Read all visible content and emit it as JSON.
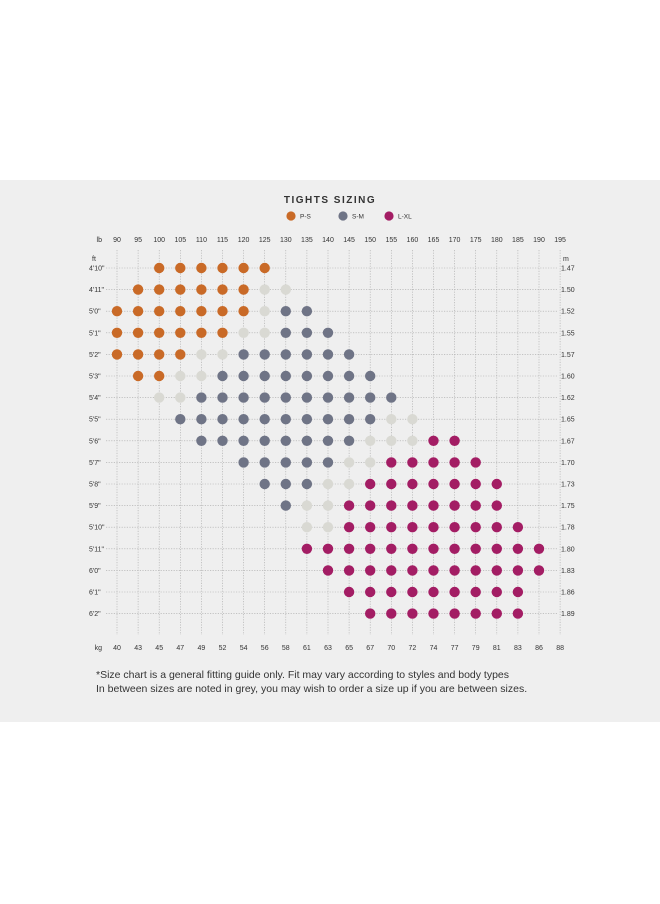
{
  "colors": {
    "ps": "#c96a27",
    "sm": "#6f7486",
    "lxl": "#a31d64",
    "between": "#d9d9d3",
    "grid": "#a8a8a8",
    "text": "#333333"
  },
  "chart_data": {
    "type": "scatter",
    "title": "TIGHTS SIZING",
    "legend": [
      {
        "key": "ps",
        "label": "P-S"
      },
      {
        "key": "sm",
        "label": "S-M"
      },
      {
        "key": "lxl",
        "label": "L-XL"
      }
    ],
    "x_top_unit": "lb",
    "x_top": [
      "90",
      "95",
      "100",
      "105",
      "110",
      "115",
      "120",
      "125",
      "130",
      "135",
      "140",
      "145",
      "150",
      "155",
      "160",
      "165",
      "170",
      "175",
      "180",
      "185",
      "190",
      "195"
    ],
    "x_bottom_unit": "kg",
    "x_bottom": [
      "40",
      "43",
      "45",
      "47",
      "49",
      "52",
      "54",
      "56",
      "58",
      "61",
      "63",
      "65",
      "67",
      "70",
      "72",
      "74",
      "77",
      "79",
      "81",
      "83",
      "86",
      "88"
    ],
    "y_left_unit": "ft",
    "y_left": [
      "4'10\"",
      "4'11\"",
      "5'0\"",
      "5'1\"",
      "5'2\"",
      "5'3\"",
      "5'4\"",
      "5'5\"",
      "5'6\"",
      "5'7\"",
      "5'8\"",
      "5'9\"",
      "5'10\"",
      "5'11\"",
      "6'0\"",
      "6'1\"",
      "6'2\""
    ],
    "y_right_unit": "m",
    "y_right": [
      "1.47",
      "1.50",
      "1.52",
      "1.55",
      "1.57",
      "1.60",
      "1.62",
      "1.65",
      "1.67",
      "1.70",
      "1.73",
      "1.75",
      "1.78",
      "1.80",
      "1.83",
      "1.86",
      "1.89"
    ],
    "rows": [
      {
        "height": "4'10\"",
        "ps": [
          "100",
          "125"
        ],
        "between": [],
        "sm": [],
        "lxl": []
      },
      {
        "height": "4'11\"",
        "ps": [
          "95",
          "120"
        ],
        "between": [
          [
            "125",
            "130"
          ]
        ],
        "sm": [],
        "lxl": []
      },
      {
        "height": "5'0\"",
        "ps": [
          "90",
          "120"
        ],
        "between": [
          [
            "125",
            "125"
          ]
        ],
        "sm": [
          "130",
          "135"
        ],
        "lxl": []
      },
      {
        "height": "5'1\"",
        "ps": [
          "90",
          "115"
        ],
        "between": [
          [
            "120",
            "125"
          ]
        ],
        "sm": [
          "130",
          "140"
        ],
        "lxl": []
      },
      {
        "height": "5'2\"",
        "ps": [
          "90",
          "105"
        ],
        "between": [
          [
            "110",
            "115"
          ]
        ],
        "sm": [
          "120",
          "145"
        ],
        "lxl": []
      },
      {
        "height": "5'3\"",
        "ps": [
          "95",
          "100"
        ],
        "between": [
          [
            "105",
            "110"
          ]
        ],
        "sm": [
          "115",
          "150"
        ],
        "lxl": []
      },
      {
        "height": "5'4\"",
        "ps": [],
        "between": [
          [
            "100",
            "105"
          ]
        ],
        "sm": [
          "110",
          "155"
        ],
        "lxl": []
      },
      {
        "height": "5'5\"",
        "ps": [],
        "between": [
          [
            "155",
            "160"
          ]
        ],
        "sm": [
          "105",
          "150"
        ],
        "lxl": []
      },
      {
        "height": "5'6\"",
        "ps": [],
        "between": [
          [
            "150",
            "160"
          ]
        ],
        "sm": [
          "110",
          "145"
        ],
        "lxl": [
          "165",
          "170"
        ]
      },
      {
        "height": "5'7\"",
        "ps": [],
        "between": [
          [
            "145",
            "150"
          ]
        ],
        "sm": [
          "120",
          "140"
        ],
        "lxl": [
          "155",
          "175"
        ]
      },
      {
        "height": "5'8\"",
        "ps": [],
        "between": [
          [
            "140",
            "145"
          ]
        ],
        "sm": [
          "125",
          "135"
        ],
        "lxl": [
          "150",
          "180"
        ]
      },
      {
        "height": "5'9\"",
        "ps": [],
        "between": [
          [
            "135",
            "140"
          ]
        ],
        "sm": [
          "130",
          "130"
        ],
        "lxl": [
          "145",
          "180"
        ]
      },
      {
        "height": "5'10\"",
        "ps": [],
        "between": [
          [
            "135",
            "140"
          ]
        ],
        "sm": [],
        "lxl": [
          "145",
          "185"
        ]
      },
      {
        "height": "5'11\"",
        "ps": [],
        "between": [],
        "sm": [],
        "lxl": [
          "135",
          "190"
        ]
      },
      {
        "height": "6'0\"",
        "ps": [],
        "between": [],
        "sm": [],
        "lxl": [
          "140",
          "190"
        ]
      },
      {
        "height": "6'1\"",
        "ps": [],
        "between": [],
        "sm": [],
        "lxl": [
          "145",
          "185"
        ]
      },
      {
        "height": "6'2\"",
        "ps": [],
        "between": [],
        "sm": [],
        "lxl": [
          "150",
          "185"
        ]
      }
    ]
  },
  "notes": [
    "*Size chart is a general fitting guide only. Fit may vary according to styles and body types",
    "In between sizes are noted in grey, you may wish to order a size up if you are between sizes."
  ]
}
